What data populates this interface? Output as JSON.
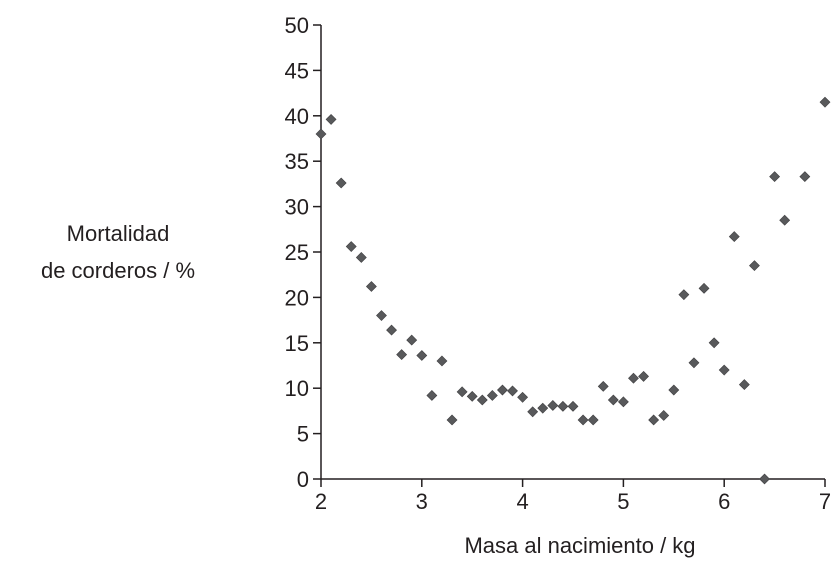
{
  "chart_data": {
    "type": "scatter",
    "xlabel": "Masa al nacimiento / kg",
    "ylabel_lines": [
      "Mortalidad",
      "de corderos / %"
    ],
    "xlim": [
      2,
      7
    ],
    "ylim": [
      0,
      50
    ],
    "xticks": [
      2,
      3,
      4,
      5,
      6,
      7
    ],
    "yticks": [
      0,
      5,
      10,
      15,
      20,
      25,
      30,
      35,
      40,
      45,
      50
    ],
    "marker": "diamond",
    "marker_color": "#58595b",
    "grid": false,
    "legend": "none",
    "points": [
      {
        "x": 2.0,
        "y": 38.0
      },
      {
        "x": 2.1,
        "y": 39.6
      },
      {
        "x": 2.2,
        "y": 32.6
      },
      {
        "x": 2.3,
        "y": 25.6
      },
      {
        "x": 2.4,
        "y": 24.4
      },
      {
        "x": 2.5,
        "y": 21.2
      },
      {
        "x": 2.6,
        "y": 18.0
      },
      {
        "x": 2.7,
        "y": 16.4
      },
      {
        "x": 2.8,
        "y": 13.7
      },
      {
        "x": 2.9,
        "y": 15.3
      },
      {
        "x": 3.0,
        "y": 13.6
      },
      {
        "x": 3.1,
        "y": 9.2
      },
      {
        "x": 3.2,
        "y": 13.0
      },
      {
        "x": 3.3,
        "y": 6.5
      },
      {
        "x": 3.4,
        "y": 9.6
      },
      {
        "x": 3.5,
        "y": 9.1
      },
      {
        "x": 3.6,
        "y": 8.7
      },
      {
        "x": 3.7,
        "y": 9.2
      },
      {
        "x": 3.8,
        "y": 9.8
      },
      {
        "x": 3.9,
        "y": 9.7
      },
      {
        "x": 4.0,
        "y": 9.0
      },
      {
        "x": 4.1,
        "y": 7.4
      },
      {
        "x": 4.2,
        "y": 7.8
      },
      {
        "x": 4.3,
        "y": 8.1
      },
      {
        "x": 4.4,
        "y": 8.0
      },
      {
        "x": 4.5,
        "y": 8.0
      },
      {
        "x": 4.6,
        "y": 6.5
      },
      {
        "x": 4.7,
        "y": 6.5
      },
      {
        "x": 4.8,
        "y": 10.2
      },
      {
        "x": 4.9,
        "y": 8.7
      },
      {
        "x": 5.0,
        "y": 8.5
      },
      {
        "x": 5.1,
        "y": 11.1
      },
      {
        "x": 5.2,
        "y": 11.3
      },
      {
        "x": 5.3,
        "y": 6.5
      },
      {
        "x": 5.4,
        "y": 7.0
      },
      {
        "x": 5.5,
        "y": 9.8
      },
      {
        "x": 5.6,
        "y": 20.3
      },
      {
        "x": 5.7,
        "y": 12.8
      },
      {
        "x": 5.8,
        "y": 21.0
      },
      {
        "x": 5.9,
        "y": 15.0
      },
      {
        "x": 6.0,
        "y": 12.0
      },
      {
        "x": 6.1,
        "y": 26.7
      },
      {
        "x": 6.2,
        "y": 10.4
      },
      {
        "x": 6.3,
        "y": 23.5
      },
      {
        "x": 6.4,
        "y": 0.0
      },
      {
        "x": 6.5,
        "y": 33.3
      },
      {
        "x": 6.6,
        "y": 28.5
      },
      {
        "x": 6.8,
        "y": 33.3
      },
      {
        "x": 7.0,
        "y": 41.5
      }
    ]
  }
}
